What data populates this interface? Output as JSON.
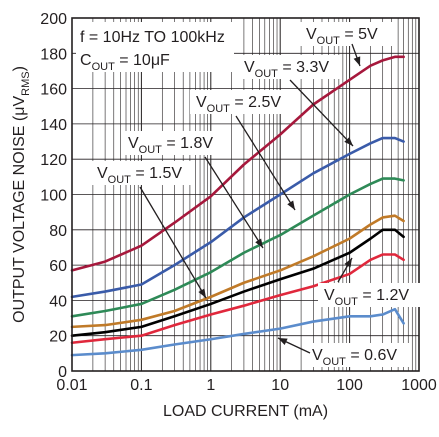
{
  "chart_data": {
    "type": "line",
    "xlabel": "LOAD CURRENT (mA)",
    "ylabel": {
      "main": "OUTPUT VOLTAGE NOISE (μV",
      "sub": "RMS",
      "close": ")"
    },
    "x_scale": "log",
    "xlim": [
      0.01,
      1000
    ],
    "ylim": [
      0,
      200
    ],
    "grid": true,
    "x_ticks": [
      {
        "value": 0.01,
        "label": "0.01"
      },
      {
        "value": 0.1,
        "label": "0.1"
      },
      {
        "value": 1,
        "label": "1"
      },
      {
        "value": 10,
        "label": "10"
      },
      {
        "value": 100,
        "label": "100"
      },
      {
        "value": 1000,
        "label": "1000"
      }
    ],
    "y_ticks": [
      {
        "value": 0,
        "label": "0"
      },
      {
        "value": 20,
        "label": "20"
      },
      {
        "value": 40,
        "label": "40"
      },
      {
        "value": 60,
        "label": "60"
      },
      {
        "value": 80,
        "label": "80"
      },
      {
        "value": 100,
        "label": "100"
      },
      {
        "value": 120,
        "label": "120"
      },
      {
        "value": 140,
        "label": "140"
      },
      {
        "value": 160,
        "label": "160"
      },
      {
        "value": 180,
        "label": "180"
      },
      {
        "value": 200,
        "label": "200"
      }
    ],
    "conditions": [
      {
        "main": "f = 10Hz TO 100kHz",
        "sub": "",
        "tail": ""
      },
      {
        "main": "C",
        "sub": "OUT",
        "tail": " = 10μF"
      }
    ],
    "series": [
      {
        "name": "5V",
        "color": "#a6183c",
        "x": [
          0.01,
          0.03,
          0.1,
          0.3,
          1,
          3,
          10,
          30,
          100,
          200,
          300,
          450,
          600
        ],
        "y": [
          57,
          62,
          71,
          84,
          99,
          117,
          134,
          151,
          165,
          173,
          176,
          178,
          178
        ]
      },
      {
        "name": "3.3V",
        "color": "#3a5ba9",
        "x": [
          0.01,
          0.03,
          0.1,
          0.3,
          1,
          3,
          10,
          30,
          100,
          200,
          300,
          450,
          600
        ],
        "y": [
          42,
          45,
          49,
          60,
          73,
          87,
          100,
          112,
          123,
          129,
          132,
          132,
          130
        ]
      },
      {
        "name": "2.5V",
        "color": "#2e8a57",
        "x": [
          0.01,
          0.03,
          0.1,
          0.3,
          1,
          3,
          10,
          30,
          100,
          200,
          300,
          450,
          600
        ],
        "y": [
          31,
          34,
          38,
          46,
          56,
          67,
          77,
          88,
          100,
          106,
          109,
          109,
          108
        ]
      },
      {
        "name": "1.8V",
        "color": "#c07a28",
        "x": [
          0.01,
          0.03,
          0.1,
          0.3,
          1,
          3,
          10,
          30,
          100,
          200,
          300,
          450,
          600
        ],
        "y": [
          25,
          26,
          29,
          34,
          42,
          50,
          57,
          65,
          75,
          83,
          87,
          88,
          85
        ]
      },
      {
        "name": "1.5V",
        "color": "#000000",
        "x": [
          0.01,
          0.03,
          0.1,
          0.3,
          1,
          3,
          10,
          30,
          100,
          200,
          300,
          450,
          600
        ],
        "y": [
          20,
          22,
          25,
          31,
          38,
          45,
          52,
          58,
          67,
          75,
          80,
          80,
          76
        ]
      },
      {
        "name": "1.2V",
        "color": "#e0283c",
        "x": [
          0.01,
          0.03,
          0.1,
          0.3,
          1,
          3,
          10,
          30,
          100,
          200,
          300,
          450,
          600
        ],
        "y": [
          16,
          18,
          20,
          26,
          32,
          37,
          43,
          48,
          55,
          63,
          66,
          66,
          63
        ]
      },
      {
        "name": "0.6V",
        "color": "#5b8ccc",
        "x": [
          0.01,
          0.03,
          0.1,
          0.3,
          1,
          3,
          10,
          30,
          100,
          200,
          300,
          450,
          600
        ],
        "y": [
          9,
          10,
          12,
          15,
          18,
          21,
          24,
          28,
          31,
          31,
          32,
          35,
          27
        ]
      }
    ],
    "annotations": [
      {
        "main": "V",
        "sub": "OUT",
        "tail": " = 5V"
      },
      {
        "main": "V",
        "sub": "OUT",
        "tail": " = 3.3V"
      },
      {
        "main": "V",
        "sub": "OUT",
        "tail": " = 2.5V"
      },
      {
        "main": "V",
        "sub": "OUT",
        "tail": " = 1.8V"
      },
      {
        "main": "V",
        "sub": "OUT",
        "tail": " = 1.5V"
      },
      {
        "main": "V",
        "sub": "OUT",
        "tail": " = 1.2V"
      },
      {
        "main": "V",
        "sub": "OUT",
        "tail": " = 0.6V"
      }
    ]
  }
}
